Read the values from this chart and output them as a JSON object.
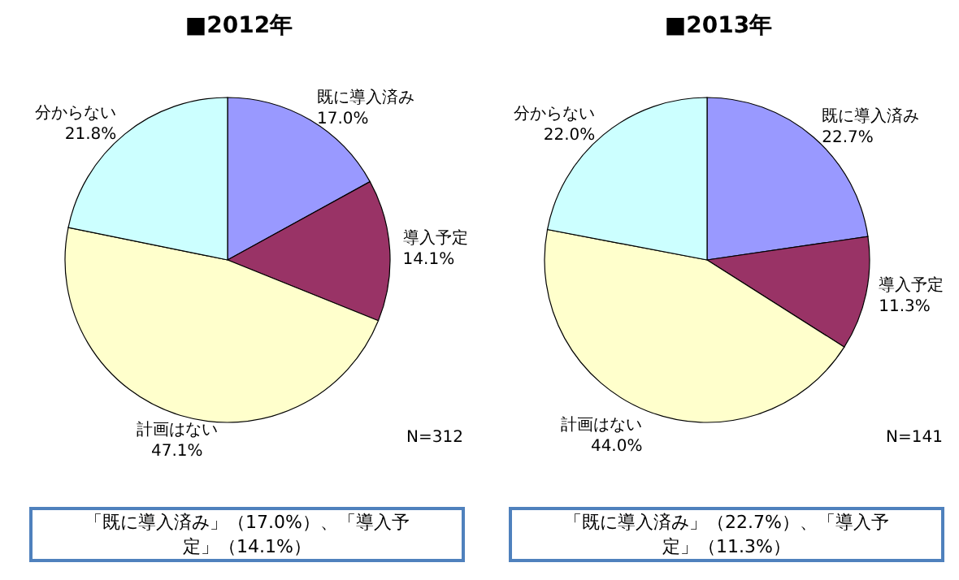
{
  "chart_data": [
    {
      "type": "pie",
      "title": "■2012年",
      "categories": [
        "既に導入済み",
        "導入予定",
        "計画はない",
        "分からない"
      ],
      "values": [
        17.0,
        14.1,
        47.1,
        21.8
      ],
      "colors": [
        "#9999ff",
        "#993366",
        "#ffffcc",
        "#ccffff"
      ],
      "value_labels": [
        "17.0%",
        "14.1%",
        "47.1%",
        "21.8%"
      ],
      "annotations": [
        "N=312",
        "「既に導入済み」（17.0%）、「導入予定」（14.1%）"
      ]
    },
    {
      "type": "pie",
      "title": "■2013年",
      "categories": [
        "既に導入済み",
        "導入予定",
        "計画はない",
        "分からない"
      ],
      "values": [
        22.7,
        11.3,
        44.0,
        22.0
      ],
      "colors": [
        "#9999ff",
        "#993366",
        "#ffffcc",
        "#ccffff"
      ],
      "value_labels": [
        "22.7%",
        "11.3%",
        "44.0%",
        "22.0%"
      ],
      "annotations": [
        "N=141",
        "「既に導入済み」（22.7%）、「導入予定」（11.3%）"
      ]
    }
  ]
}
